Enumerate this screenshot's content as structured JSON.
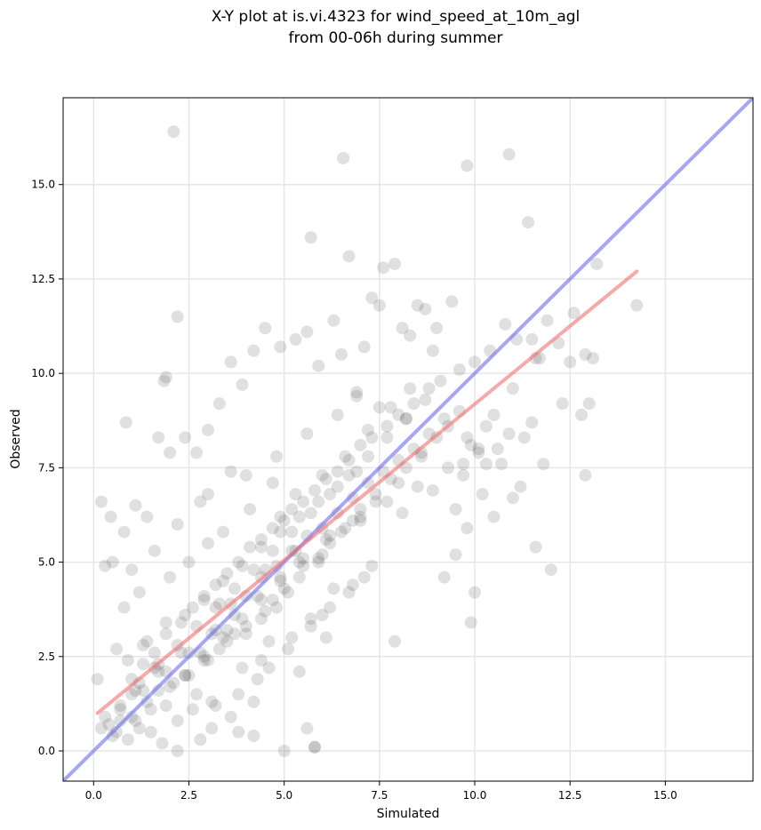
{
  "chart_data": {
    "type": "scatter",
    "title_lines": [
      "X-Y plot at is.vi.4323 for wind_speed_at_10m_agl",
      "from 00-06h during summer"
    ],
    "xlabel": "Simulated",
    "ylabel": "Observed",
    "xlim": [
      -0.8,
      17.3
    ],
    "ylim": [
      -0.8,
      17.3
    ],
    "xticks": [
      0.0,
      2.5,
      5.0,
      7.5,
      10.0,
      12.5,
      15.0
    ],
    "yticks": [
      0.0,
      2.5,
      5.0,
      7.5,
      10.0,
      12.5,
      15.0
    ],
    "xtick_labels": [
      "0.0",
      "2.5",
      "5.0",
      "7.5",
      "10.0",
      "12.5",
      "15.0"
    ],
    "ytick_labels": [
      "0.0",
      "2.5",
      "5.0",
      "7.5",
      "10.0",
      "12.5",
      "15.0"
    ],
    "grid": true,
    "colors": {
      "points": "#555555",
      "identity_line": "#6b6bf0",
      "fit_line": "#f07070",
      "grid": "#e6e6e6"
    },
    "lines": [
      {
        "role": "identity",
        "x": [
          -0.8,
          17.3
        ],
        "y": [
          -0.8,
          17.3
        ]
      },
      {
        "role": "regression",
        "x": [
          0.1,
          14.25
        ],
        "y": [
          1.0,
          12.7
        ]
      }
    ],
    "points_x": [
      2.1,
      6.55,
      10.9,
      9.8,
      11.4,
      5.7,
      6.7,
      13.2,
      14.25,
      12.6,
      12.9,
      7.9,
      2.2,
      1.85,
      1.9,
      0.85,
      0.2,
      0.45,
      9.9,
      12.0,
      11.6,
      10.0,
      9.2,
      9.5,
      9.8,
      10.2,
      10.5,
      11.0,
      11.2,
      11.8,
      10.6,
      10.3,
      12.8,
      13.0,
      10.8,
      11.5,
      11.9,
      12.5,
      13.1,
      8.5,
      8.9,
      9.0,
      9.4,
      7.3,
      7.5,
      7.6,
      8.1,
      8.3,
      8.7,
      7.1,
      6.9,
      6.3,
      6.5,
      5.9,
      5.6,
      5.3,
      4.9,
      4.5,
      4.2,
      3.9,
      3.6,
      3.3,
      3.0,
      2.7,
      2.4,
      2.0,
      1.7,
      1.4,
      1.1,
      0.8,
      0.5,
      0.3,
      0.1,
      0.6,
      1.0,
      1.3,
      1.6,
      1.9,
      2.3,
      2.6,
      2.9,
      3.2,
      3.5,
      3.8,
      4.1,
      4.4,
      4.7,
      5.0,
      5.2,
      5.5,
      5.8,
      6.1,
      6.4,
      6.7,
      7.0,
      7.3,
      7.7,
      8.0,
      8.4,
      8.8,
      9.1,
      9.6,
      10.0,
      10.4,
      11.1,
      11.7,
      12.2,
      9.9,
      9.7,
      10.1,
      5.8,
      5.8,
      5.0,
      5.6,
      4.2,
      3.8,
      3.1,
      2.8,
      2.2,
      1.8,
      1.5,
      1.2,
      0.9,
      0.6,
      0.4,
      0.2,
      0.7,
      1.0,
      1.4,
      1.7,
      2.1,
      2.5,
      2.9,
      3.3,
      3.7,
      4.0,
      4.4,
      4.8,
      5.1,
      5.4,
      5.9,
      6.2,
      6.6,
      7.0,
      7.4,
      7.8,
      8.2,
      8.6,
      9.0,
      9.3,
      3.0,
      3.5,
      4.0,
      4.5,
      5.0,
      5.5,
      6.0,
      6.5,
      7.0,
      1.3,
      1.6,
      2.0,
      2.4,
      2.8,
      3.2,
      3.6,
      4.0,
      4.4,
      4.8,
      5.2,
      5.6,
      6.0,
      6.4,
      6.8,
      7.2,
      7.6,
      8.0,
      8.4,
      8.8,
      9.2,
      9.6,
      3.2,
      3.8,
      4.3,
      4.6,
      5.1,
      5.7,
      6.2,
      6.8,
      7.3,
      2.2,
      2.6,
      3.1,
      1.0,
      1.5,
      0.7,
      4.9,
      5.3,
      6.0,
      6.6,
      7.2,
      7.8,
      8.3,
      3.4,
      4.1,
      4.7,
      2.5,
      3.0,
      2.0,
      1.2,
      0.8,
      5.4,
      6.1,
      3.6,
      4.2,
      7.9,
      9.5,
      10.7,
      11.3,
      6.3,
      5.7,
      4.6,
      3.9,
      2.7,
      1.9,
      1.1,
      0.5,
      0.3,
      12.9,
      12.3,
      11.6,
      11.0,
      10.5,
      9.8,
      8.6,
      8.0,
      7.4,
      6.8,
      6.1,
      5.5,
      4.9,
      4.3,
      3.7,
      3.1,
      2.5,
      1.9,
      1.3,
      0.7,
      6.9,
      7.5,
      8.2,
      4.0,
      4.8,
      5.6,
      6.4,
      3.0,
      3.6,
      2.2,
      2.8,
      1.6,
      1.0,
      4.4,
      5.2,
      6.0,
      6.7,
      7.1,
      5.9,
      4.7,
      3.5,
      2.3,
      1.7,
      1.1,
      3.3,
      4.5,
      5.3,
      6.2,
      7.0,
      7.7,
      8.5,
      9.3,
      10.1,
      10.9,
      11.5,
      8.1,
      8.9,
      9.7,
      10.3,
      2.4,
      2.9,
      3.4,
      3.9,
      4.4,
      4.9,
      5.4,
      5.9,
      6.4,
      6.9,
      0.9,
      1.4,
      1.9,
      2.4,
      2.9,
      3.4,
      3.9,
      4.4,
      4.9,
      5.4,
      1.2,
      1.7,
      2.2,
      2.7,
      3.2,
      3.7,
      4.2,
      4.7,
      5.2,
      5.7,
      6.2,
      6.7,
      7.2,
      7.7,
      8.2,
      8.7
    ],
    "points_y": [
      16.4,
      15.7,
      15.8,
      15.5,
      14.0,
      13.6,
      13.1,
      12.9,
      11.8,
      11.6,
      10.5,
      12.9,
      11.5,
      9.8,
      9.9,
      8.7,
      6.6,
      6.2,
      3.4,
      4.8,
      5.4,
      4.2,
      4.6,
      6.4,
      5.9,
      6.8,
      6.2,
      6.7,
      7.0,
      7.6,
      8.0,
      8.6,
      8.9,
      9.2,
      11.3,
      10.9,
      11.4,
      10.3,
      10.4,
      11.8,
      10.6,
      11.2,
      11.9,
      12.0,
      11.8,
      12.8,
      11.2,
      11.0,
      11.7,
      10.7,
      9.4,
      11.4,
      10.5,
      10.2,
      11.1,
      10.9,
      10.7,
      11.2,
      10.6,
      9.7,
      10.3,
      9.2,
      8.5,
      7.9,
      8.3,
      7.9,
      8.3,
      6.2,
      6.5,
      5.8,
      5.0,
      4.9,
      1.9,
      2.7,
      1.9,
      2.3,
      2.6,
      3.1,
      3.4,
      3.8,
      4.1,
      4.4,
      4.7,
      5.0,
      5.4,
      5.6,
      5.9,
      6.1,
      6.4,
      6.6,
      6.9,
      7.2,
      7.4,
      7.7,
      8.1,
      8.3,
      8.6,
      8.9,
      9.2,
      9.6,
      9.8,
      10.1,
      10.3,
      10.6,
      10.9,
      10.4,
      10.8,
      8.1,
      7.6,
      7.9,
      0.1,
      0.1,
      0.0,
      0.6,
      0.4,
      0.5,
      0.6,
      0.3,
      0.0,
      0.2,
      0.5,
      0.6,
      0.3,
      0.5,
      0.7,
      0.6,
      1.2,
      1.5,
      1.3,
      1.6,
      1.8,
      2.0,
      2.4,
      2.7,
      3.1,
      3.3,
      3.5,
      3.8,
      4.2,
      4.6,
      5.1,
      5.5,
      5.9,
      6.4,
      6.8,
      7.2,
      7.5,
      7.9,
      8.3,
      8.6,
      2.4,
      2.9,
      3.1,
      3.7,
      4.3,
      4.9,
      5.2,
      5.8,
      6.2,
      2.8,
      2.2,
      1.7,
      2.0,
      2.6,
      3.2,
      3.9,
      4.1,
      4.6,
      4.9,
      5.3,
      5.7,
      5.9,
      6.3,
      6.7,
      7.1,
      7.4,
      7.7,
      8.0,
      8.4,
      8.8,
      9.0,
      1.2,
      1.5,
      1.9,
      2.2,
      2.7,
      3.3,
      3.8,
      4.4,
      4.9,
      0.8,
      1.1,
      1.3,
      0.9,
      1.1,
      0.8,
      6.2,
      6.8,
      7.3,
      7.8,
      8.5,
      9.1,
      9.6,
      5.8,
      6.4,
      7.1,
      5.0,
      5.5,
      4.6,
      4.2,
      3.8,
      2.1,
      3.0,
      0.9,
      1.3,
      2.9,
      5.2,
      7.6,
      8.3,
      4.3,
      3.5,
      2.9,
      2.2,
      1.5,
      1.2,
      0.8,
      0.4,
      0.9,
      7.3,
      9.2,
      10.4,
      9.6,
      8.9,
      8.3,
      7.8,
      7.1,
      6.6,
      6.1,
      5.6,
      5.1,
      4.6,
      4.1,
      3.6,
      3.1,
      2.6,
      2.1,
      1.6,
      1.1,
      9.5,
      9.1,
      8.8,
      7.3,
      7.8,
      8.4,
      8.9,
      6.8,
      7.4,
      6.0,
      6.6,
      5.3,
      4.8,
      2.4,
      3.0,
      3.6,
      4.2,
      4.6,
      5.0,
      4.0,
      3.2,
      2.6,
      2.1,
      1.6,
      3.9,
      4.8,
      5.3,
      5.7,
      6.1,
      6.6,
      7.0,
      7.5,
      8.0,
      8.4,
      8.7,
      6.3,
      6.9,
      7.3,
      7.6,
      3.6,
      4.0,
      4.5,
      4.9,
      5.4,
      5.8,
      6.2,
      6.6,
      7.0,
      7.4,
      2.4,
      2.9,
      3.4,
      2.0,
      2.5,
      3.0,
      3.5,
      4.0,
      4.5,
      5.0,
      1.8,
      2.3,
      2.8,
      3.3,
      3.8,
      4.3,
      4.8,
      5.3,
      5.8,
      6.3,
      6.8,
      7.3,
      7.8,
      8.3,
      8.8,
      9.3
    ]
  }
}
